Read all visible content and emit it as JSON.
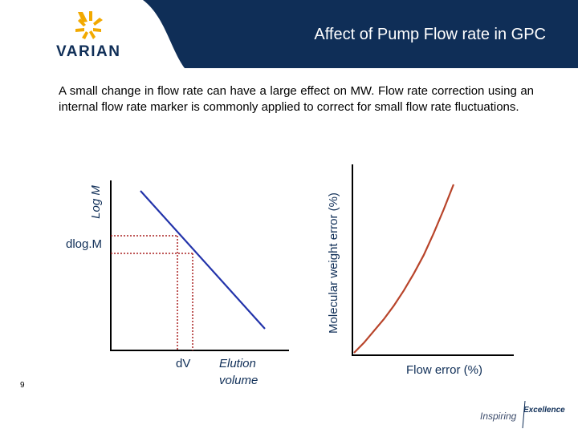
{
  "header": {
    "title": "Affect of Pump Flow rate in GPC",
    "logo_text": "VARIAN"
  },
  "intro": "A small change in flow rate can have a large effect on MW. Flow rate correction using an internal flow rate marker is commonly applied to correct for small flow rate fluctuations.",
  "left_chart": {
    "ylabel": "Log M",
    "xlabel_line1": "Elution",
    "xlabel_line2": "volume",
    "y_marker": "dlog.M",
    "x_marker": "dV"
  },
  "right_chart": {
    "ylabel": "Molecular weight error (%)",
    "xlabel": "Flow error (%)"
  },
  "footer": {
    "page_number": "9",
    "brand_left": "Inspiring",
    "brand_right": "Excellence"
  },
  "colors": {
    "header": "#0f2e57",
    "line": "#2233aa",
    "curve": "#b8442a",
    "marker": "#aa2222"
  },
  "chart_data": [
    {
      "type": "line",
      "title": "",
      "xlabel": "Elution volume",
      "ylabel": "Log M",
      "series": [
        {
          "x": [
            0,
            1
          ],
          "y": [
            1,
            0
          ]
        }
      ]
    },
    {
      "type": "line",
      "title": "",
      "xlabel": "Flow error (%)",
      "ylabel": "Molecular weight error (%)",
      "series": [
        {
          "x": [
            0,
            0.1,
            0.2,
            0.3,
            0.4,
            0.5,
            0.6,
            0.7,
            0.8,
            0.9,
            1.0
          ],
          "y": [
            0,
            0.06,
            0.13,
            0.2,
            0.28,
            0.37,
            0.47,
            0.58,
            0.71,
            0.85,
            1.0
          ]
        }
      ]
    }
  ]
}
